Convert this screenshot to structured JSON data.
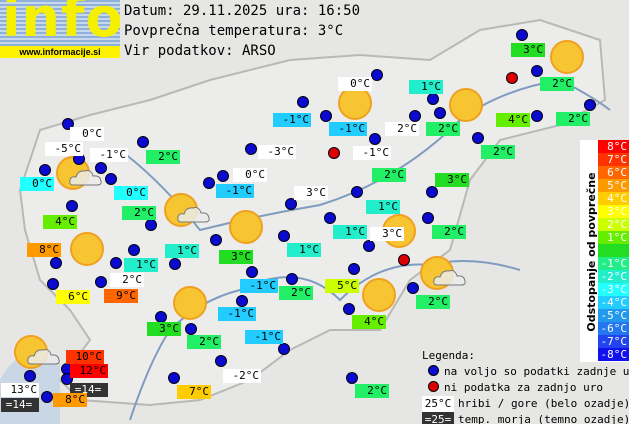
{
  "header": {
    "logo_text": "info",
    "logo_url": "www.informacije.si",
    "date_line": "Datum: 29.11.2025 ura: 16:50",
    "avg_line": "Povprečna temperatura: 3°C",
    "source_line": "Vir podatkov: ARSO"
  },
  "scale": {
    "title": "Odstopanje od povprečne temperature:",
    "items": [
      {
        "t": "8°C",
        "c": "#ff0000"
      },
      {
        "t": "7°C",
        "c": "#ff3300"
      },
      {
        "t": "6°C",
        "c": "#ff6600"
      },
      {
        "t": "5°C",
        "c": "#ff9900"
      },
      {
        "t": "4°C",
        "c": "#ffcc00"
      },
      {
        "t": "3°C",
        "c": "#ffff00"
      },
      {
        "t": "2°C",
        "c": "#ccff00"
      },
      {
        "t": "1°C",
        "c": "#66ee00"
      },
      {
        "t": "",
        "c": "#22dd22"
      },
      {
        "t": "-1°C",
        "c": "#22ee88"
      },
      {
        "t": "-2°C",
        "c": "#22eecc"
      },
      {
        "t": "-3°C",
        "c": "#22ffff"
      },
      {
        "t": "-4°C",
        "c": "#22ccff"
      },
      {
        "t": "-5°C",
        "c": "#2299ee"
      },
      {
        "t": "-6°C",
        "c": "#2277ee"
      },
      {
        "t": "-7°C",
        "c": "#2244ee"
      },
      {
        "t": "-8°C",
        "c": "#1111ee"
      }
    ]
  },
  "legend": {
    "title": "Legenda:",
    "blue": "na voljo so podatki zadnje ure",
    "red": "ni podatka za zadnjo uro",
    "mountain_sample": "25°C",
    "mountain": "hribi / gore (belo ozadje)",
    "sea_sample": "=25=",
    "sea": "temp. morja (temno ozadje)",
    "blue_color": "#0b0bd0",
    "red_color": "#dd0000"
  },
  "stations": [
    {
      "t": "0°C",
      "c": "#ffffff"
    },
    {
      "t": "-5°C",
      "c": "#ffffff"
    },
    {
      "t": "-1°C",
      "c": "#ffffff"
    },
    {
      "t": "2°C",
      "c": "#22ee66"
    },
    {
      "t": "0°C",
      "c": "#22ffff"
    },
    {
      "t": "0°C",
      "c": "#22ffff"
    },
    {
      "t": "2°C",
      "c": "#22ee66"
    },
    {
      "t": "4°C",
      "c": "#66ee00"
    },
    {
      "t": "8°C",
      "c": "#ff9900"
    },
    {
      "t": "1°C",
      "c": "#22eecc"
    },
    {
      "t": "1°C",
      "c": "#22eecc"
    },
    {
      "t": "2°C",
      "c": "#ffffff"
    },
    {
      "t": "6°C",
      "c": "#ffff00"
    },
    {
      "t": "9°C",
      "c": "#ff6600"
    },
    {
      "t": "3°C",
      "c": "#22dd22"
    },
    {
      "t": "2°C",
      "c": "#22ee66"
    },
    {
      "t": "10°C",
      "c": "#ff3300"
    },
    {
      "t": "12°C",
      "c": "#ff0000"
    },
    {
      "t": "=14=",
      "c": "#333333"
    },
    {
      "t": "13°C",
      "c": "#ffffff"
    },
    {
      "t": "=14=",
      "c": "#333333"
    },
    {
      "t": "8°C",
      "c": "#ff9900"
    },
    {
      "t": "7°C",
      "c": "#ffcc00"
    },
    {
      "t": "-2°C",
      "c": "#ffffff"
    },
    {
      "t": "2°C",
      "c": "#22ee66"
    },
    {
      "t": "-1°C",
      "c": "#22ccff"
    },
    {
      "t": "-1°C",
      "c": "#22ccff"
    },
    {
      "t": "-1°C",
      "c": "#22ccff"
    },
    {
      "t": "2°C",
      "c": "#22ee66"
    },
    {
      "t": "5°C",
      "c": "#ccff00"
    },
    {
      "t": "4°C",
      "c": "#66ee00"
    },
    {
      "t": "2°C",
      "c": "#22ee66"
    },
    {
      "t": "3°C",
      "c": "#22dd22"
    },
    {
      "t": "1°C",
      "c": "#22eecc"
    },
    {
      "t": "1°C",
      "c": "#22eecc"
    },
    {
      "t": "3°C",
      "c": "#ffffff"
    },
    {
      "t": "1°C",
      "c": "#22eecc"
    },
    {
      "t": "2°C",
      "c": "#22ee66"
    },
    {
      "t": "3°C",
      "c": "#ffffff"
    },
    {
      "t": "0°C",
      "c": "#ffffff"
    },
    {
      "t": "-1°C",
      "c": "#22ccff"
    },
    {
      "t": "-3°C",
      "c": "#ffffff"
    },
    {
      "t": "2°C",
      "c": "#22ee66"
    },
    {
      "t": "-1°C",
      "c": "#ffffff"
    },
    {
      "t": "-1°C",
      "c": "#22ccff"
    },
    {
      "t": "-1°C",
      "c": "#22ccff"
    },
    {
      "t": "0°C",
      "c": "#ffffff"
    },
    {
      "t": "2°C",
      "c": "#ffffff"
    },
    {
      "t": "1°C",
      "c": "#22eecc"
    },
    {
      "t": "2°C",
      "c": "#22ee66"
    },
    {
      "t": "4°C",
      "c": "#66ee00"
    },
    {
      "t": "2°C",
      "c": "#22ee66"
    },
    {
      "t": "2°C",
      "c": "#22ee66"
    },
    {
      "t": "3°C",
      "c": "#22dd22"
    },
    {
      "t": "3°C",
      "c": "#22dd22"
    },
    {
      "t": "2°C",
      "c": "#22ee66"
    }
  ]
}
